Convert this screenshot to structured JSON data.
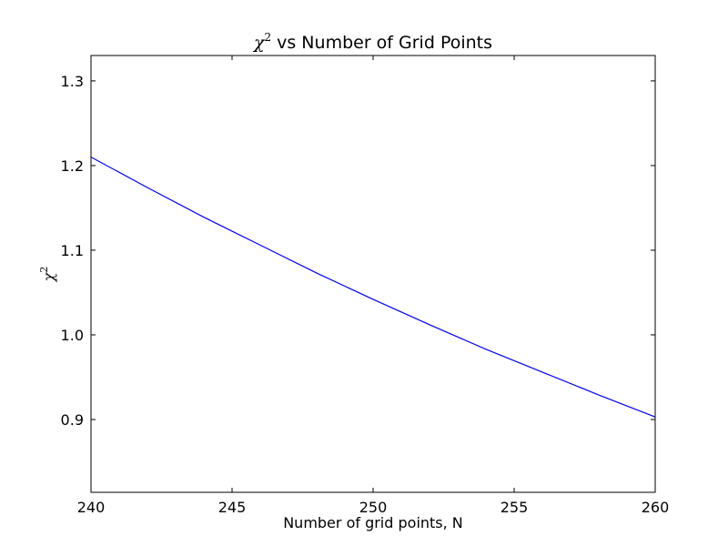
{
  "chart_data": {
    "type": "line",
    "title": {
      "symbol": "χ",
      "superscript": "2",
      "text": "vs Number of Grid Points"
    },
    "xlabel": "Number of grid points, N",
    "ylabel": {
      "symbol": "χ",
      "superscript": "2"
    },
    "xlim": [
      240,
      260
    ],
    "ylim": [
      0.814,
      1.33
    ],
    "x_ticks": [
      240,
      245,
      250,
      255,
      260
    ],
    "x_tick_labels": [
      "240",
      "245",
      "250",
      "255",
      "260"
    ],
    "y_ticks": [
      0.9,
      1.0,
      1.1,
      1.2,
      1.3
    ],
    "y_tick_labels": [
      "0.9",
      "1.0",
      "1.1",
      "1.2",
      "1.3"
    ],
    "grid": false,
    "series": [
      {
        "color": "#0000ff",
        "x": [
          240,
          242,
          244,
          246,
          248,
          250,
          252,
          254,
          256,
          258,
          260
        ],
        "y": [
          1.21,
          1.174,
          1.139,
          1.106,
          1.073,
          1.042,
          1.012,
          0.983,
          0.956,
          0.929,
          0.903
        ]
      }
    ]
  }
}
